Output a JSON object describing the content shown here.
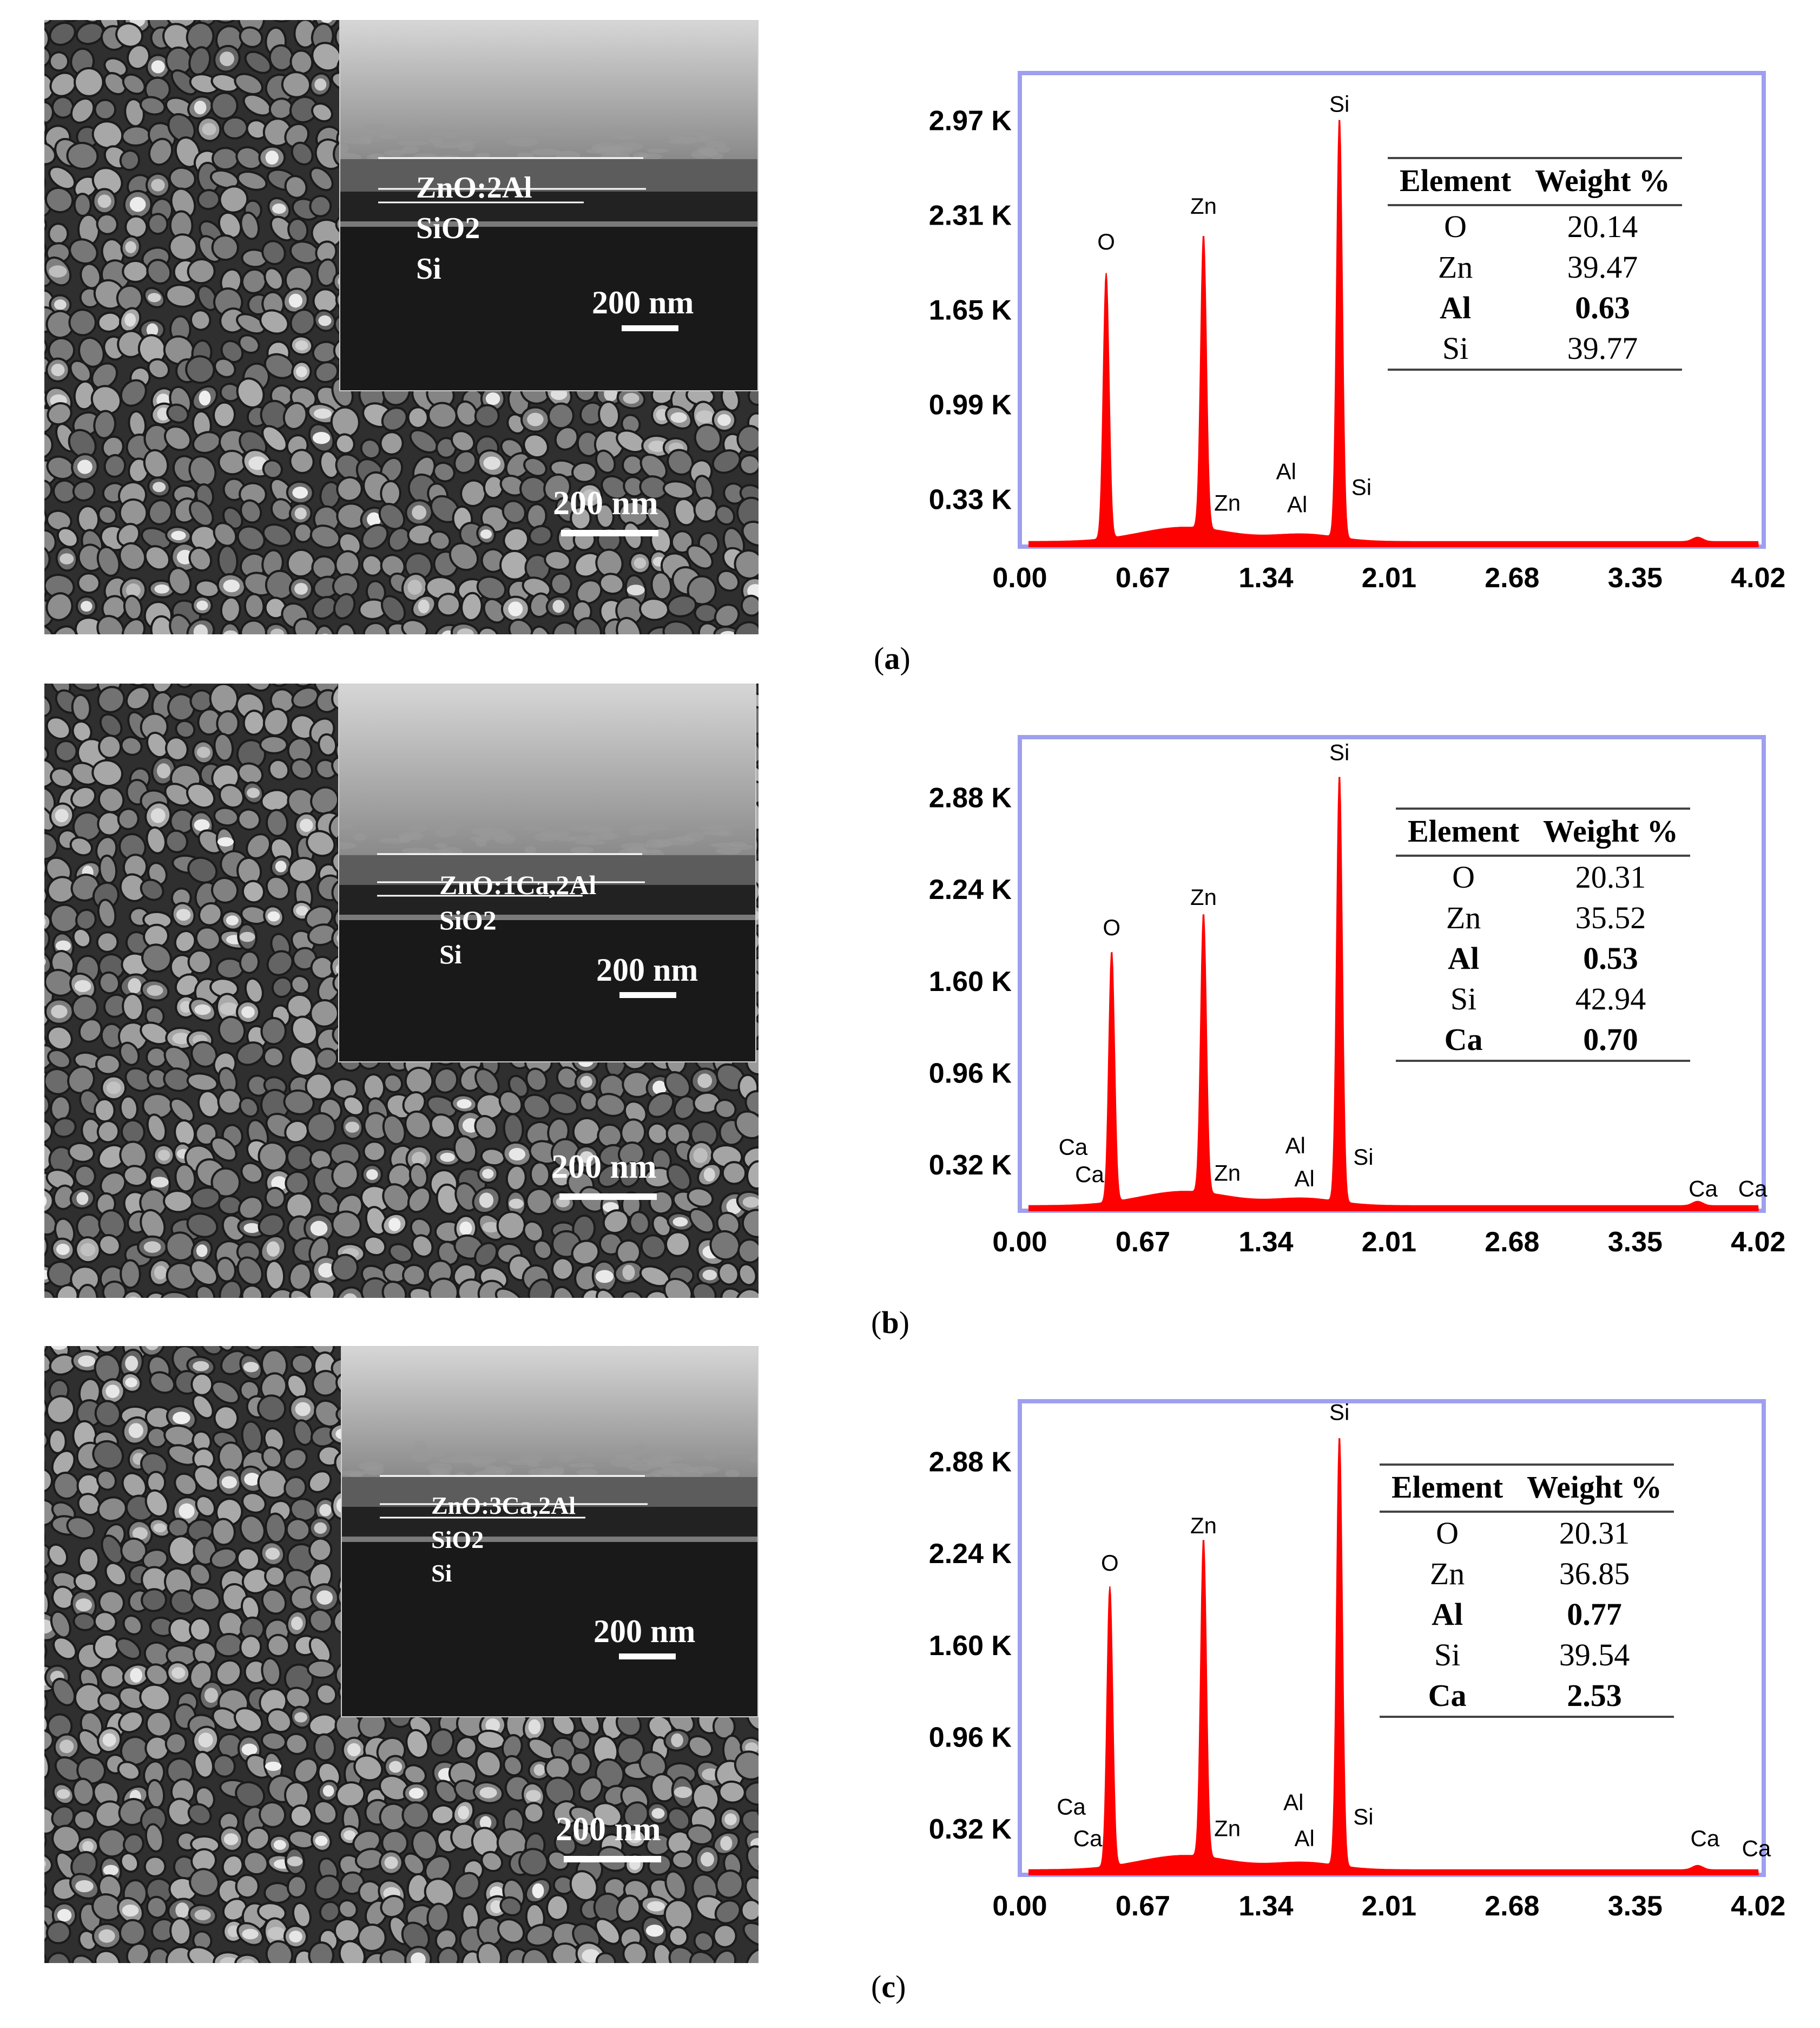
{
  "panels": [
    {
      "caption_letter": "a",
      "sem": {
        "scale_label": "200 nm"
      },
      "inset": {
        "layers": [
          "ZnO:2Al",
          "SiO2",
          "Si"
        ],
        "scale_label": "200 nm"
      },
      "table": {
        "headers": [
          "Element",
          "Weight %"
        ],
        "rows": [
          [
            "O",
            "20.14"
          ],
          [
            "Zn",
            "39.47"
          ],
          [
            "Al",
            "0.63"
          ],
          [
            "Si",
            "39.77"
          ]
        ],
        "bold_rows": [
          2
        ]
      }
    },
    {
      "caption_letter": "b",
      "sem": {
        "scale_label": "200 nm"
      },
      "inset": {
        "layers": [
          "ZnO:1Ca,2Al",
          "SiO2",
          "Si"
        ],
        "scale_label": "200 nm"
      },
      "table": {
        "headers": [
          "Element",
          "Weight %"
        ],
        "rows": [
          [
            "O",
            "20.31"
          ],
          [
            "Zn",
            "35.52"
          ],
          [
            "Al",
            "0.53"
          ],
          [
            "Si",
            "42.94"
          ],
          [
            "Ca",
            "0.70"
          ]
        ],
        "bold_rows": [
          2,
          4
        ]
      }
    },
    {
      "caption_letter": "c",
      "sem": {
        "scale_label": "200 nm"
      },
      "inset": {
        "layers": [
          "ZnO:3Ca,2Al",
          "SiO2",
          "Si"
        ],
        "scale_label": "200 nm"
      },
      "table": {
        "headers": [
          "Element",
          "Weight %"
        ],
        "rows": [
          [
            "O",
            "20.31"
          ],
          [
            "Zn",
            "36.85"
          ],
          [
            "Al",
            "0.77"
          ],
          [
            "Si",
            "39.54"
          ],
          [
            "Ca",
            "2.53"
          ]
        ],
        "bold_rows": [
          2,
          4
        ]
      }
    }
  ],
  "chart_data": [
    {
      "type": "area",
      "title": "",
      "xlabel": "",
      "ylabel": "",
      "xlim": [
        0,
        4.05
      ],
      "ylim": [
        0,
        3.3
      ],
      "x_ticks": [
        "0.00",
        "0.67",
        "1.34",
        "2.01",
        "2.68",
        "3.35",
        "4.02"
      ],
      "y_ticks": [
        {
          "value": 0.33,
          "label": "0.33 K"
        },
        {
          "value": 0.99,
          "label": "0.99 K"
        },
        {
          "value": 1.65,
          "label": "1.65 K"
        },
        {
          "value": 2.31,
          "label": "2.31 K"
        },
        {
          "value": 2.97,
          "label": "2.97 K"
        }
      ],
      "peaks": [
        {
          "element": "O",
          "x": 0.47,
          "height": 1.85
        },
        {
          "element": "Zn",
          "x": 1.0,
          "height": 2.05
        },
        {
          "element": "Si",
          "x": 1.74,
          "height": 2.93
        }
      ],
      "peak_labels": [
        {
          "text": "O",
          "x": 0.47,
          "y": 2.07
        },
        {
          "text": "Zn",
          "x": 1.0,
          "y": 2.32
        },
        {
          "text": "Si",
          "x": 1.74,
          "y": 3.03
        },
        {
          "text": "Zn",
          "x": 1.13,
          "y": 0.25
        },
        {
          "text": "Al",
          "x": 1.45,
          "y": 0.47
        },
        {
          "text": "Al",
          "x": 1.51,
          "y": 0.24
        },
        {
          "text": "Si",
          "x": 1.86,
          "y": 0.36
        }
      ],
      "line_color": "#ff0000",
      "frame_color": "#9f9fef"
    },
    {
      "type": "area",
      "title": "",
      "xlabel": "",
      "ylabel": "",
      "xlim": [
        0,
        4.05
      ],
      "ylim": [
        0,
        3.3
      ],
      "x_ticks": [
        "0.00",
        "0.67",
        "1.34",
        "2.01",
        "2.68",
        "3.35",
        "4.02"
      ],
      "y_ticks": [
        {
          "value": 0.32,
          "label": "0.32 K"
        },
        {
          "value": 0.96,
          "label": "0.96 K"
        },
        {
          "value": 1.6,
          "label": "1.60 K"
        },
        {
          "value": 2.24,
          "label": "2.24 K"
        },
        {
          "value": 2.88,
          "label": "2.88 K"
        }
      ],
      "peaks": [
        {
          "element": "O",
          "x": 0.5,
          "height": 1.75
        },
        {
          "element": "Zn",
          "x": 1.0,
          "height": 1.95
        },
        {
          "element": "Si",
          "x": 1.74,
          "height": 2.98
        }
      ],
      "peak_labels": [
        {
          "text": "O",
          "x": 0.5,
          "y": 1.92
        },
        {
          "text": "Zn",
          "x": 1.0,
          "y": 2.13
        },
        {
          "text": "Si",
          "x": 1.74,
          "y": 3.14
        },
        {
          "text": "Ca",
          "x": 0.29,
          "y": 0.39
        },
        {
          "text": "Ca",
          "x": 0.38,
          "y": 0.2
        },
        {
          "text": "Zn",
          "x": 1.13,
          "y": 0.21
        },
        {
          "text": "Al",
          "x": 1.5,
          "y": 0.4
        },
        {
          "text": "Al",
          "x": 1.55,
          "y": 0.17
        },
        {
          "text": "Si",
          "x": 1.87,
          "y": 0.32
        },
        {
          "text": "Ca",
          "x": 3.72,
          "y": 0.1
        },
        {
          "text": "Ca",
          "x": 3.99,
          "y": 0.1
        }
      ],
      "line_color": "#ff0000",
      "frame_color": "#9f9fef"
    },
    {
      "type": "area",
      "title": "",
      "xlabel": "",
      "ylabel": "",
      "xlim": [
        0,
        4.05
      ],
      "ylim": [
        0,
        3.3
      ],
      "x_ticks": [
        "0.00",
        "0.67",
        "1.34",
        "2.01",
        "2.68",
        "3.35",
        "4.02"
      ],
      "y_ticks": [
        {
          "value": 0.32,
          "label": "0.32 K"
        },
        {
          "value": 0.96,
          "label": "0.96 K"
        },
        {
          "value": 1.6,
          "label": "1.60 K"
        },
        {
          "value": 2.24,
          "label": "2.24 K"
        },
        {
          "value": 2.88,
          "label": "2.88 K"
        }
      ],
      "peaks": [
        {
          "element": "O",
          "x": 0.49,
          "height": 1.95
        },
        {
          "element": "Zn",
          "x": 1.0,
          "height": 2.22
        },
        {
          "element": "Si",
          "x": 1.74,
          "height": 3.0
        }
      ],
      "peak_labels": [
        {
          "text": "O",
          "x": 0.49,
          "y": 2.12
        },
        {
          "text": "Zn",
          "x": 1.0,
          "y": 2.38
        },
        {
          "text": "Si",
          "x": 1.74,
          "y": 3.17
        },
        {
          "text": "Ca",
          "x": 0.28,
          "y": 0.42
        },
        {
          "text": "Ca",
          "x": 0.37,
          "y": 0.2
        },
        {
          "text": "Zn",
          "x": 1.13,
          "y": 0.27
        },
        {
          "text": "Al",
          "x": 1.49,
          "y": 0.45
        },
        {
          "text": "Al",
          "x": 1.55,
          "y": 0.2
        },
        {
          "text": "Si",
          "x": 1.87,
          "y": 0.35
        },
        {
          "text": "Ca",
          "x": 3.73,
          "y": 0.2
        },
        {
          "text": "Ca",
          "x": 4.01,
          "y": 0.13
        }
      ],
      "line_color": "#ff0000",
      "frame_color": "#9f9fef"
    }
  ]
}
